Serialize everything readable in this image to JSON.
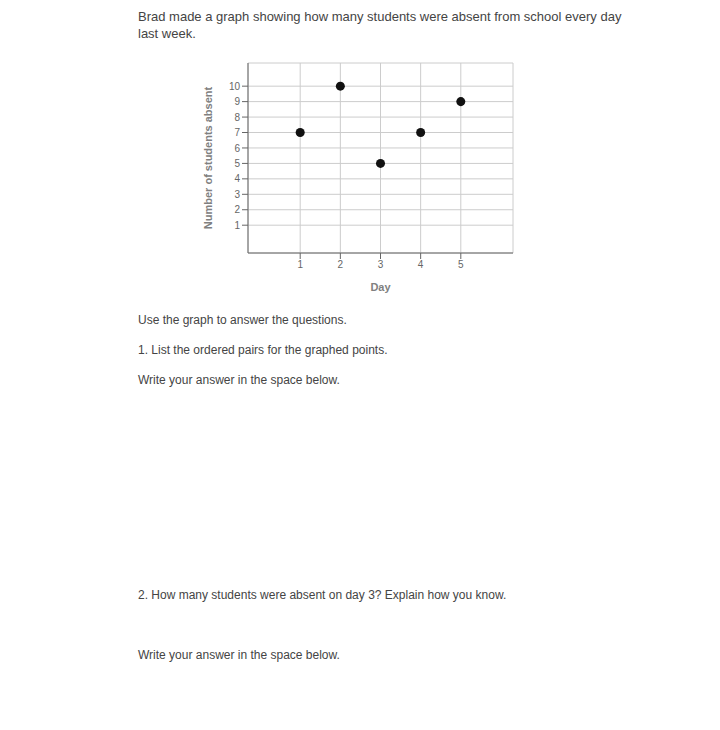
{
  "chart_data": {
    "type": "scatter",
    "title": "Brad made a graph showing how many students were absent from school every day\nlast week.",
    "x": [
      1,
      2,
      3,
      4,
      5
    ],
    "values": [
      7,
      10,
      5,
      7,
      9
    ],
    "color": "#111111",
    "xlabel": "Day",
    "ylabel": "Number of students absent",
    "xlim": [
      -0.3,
      6.3
    ],
    "ylim": [
      -0.8,
      11.5
    ],
    "xticks": [
      1,
      2,
      3,
      4,
      5
    ],
    "yticks": [
      1,
      2,
      3,
      4,
      5,
      6,
      7,
      8,
      9,
      10
    ],
    "grid": true,
    "annotations": [
      "Use the graph to answer the questions.",
      "1. List the ordered pairs for the graphed points.",
      "Write your answer in the space below.",
      "2. How many students were absent on day 3? Explain how you know.",
      "Write your answer in the space below."
    ]
  }
}
